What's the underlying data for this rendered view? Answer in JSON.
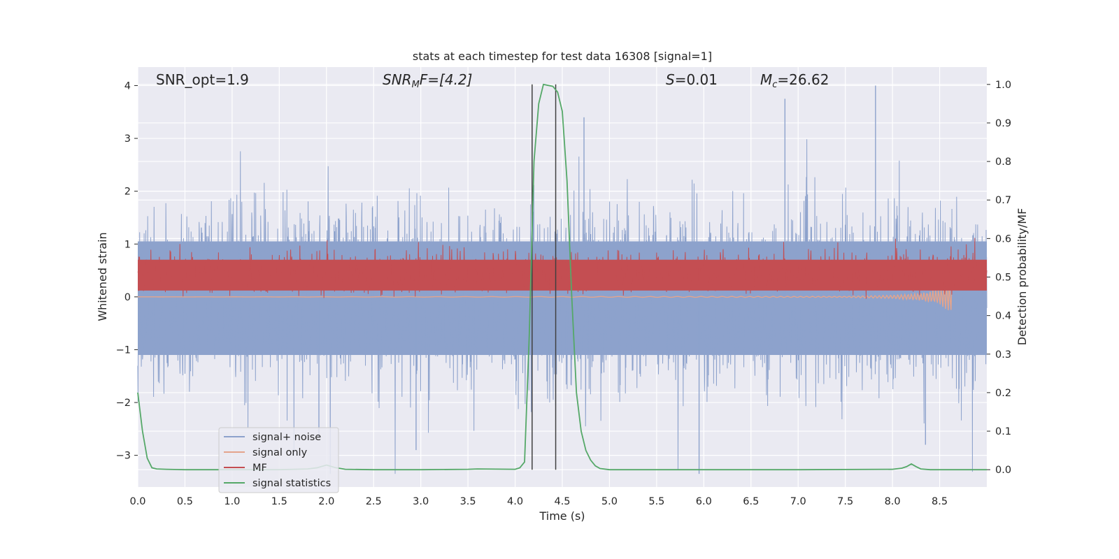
{
  "chart_data": {
    "type": "line",
    "title": "stats at each timestep for test data 16308 [signal=1]",
    "xlabel": "Time (s)",
    "ylabel": "Whitened strain",
    "ylabel_right": "Detection probability/MF",
    "xlim": [
      0.0,
      9.0
    ],
    "ylim": [
      -3.6,
      4.35
    ],
    "ylim_right": [
      -0.045,
      1.045
    ],
    "xticks": [
      "0.0",
      "0.5",
      "1.0",
      "1.5",
      "2.0",
      "2.5",
      "3.0",
      "3.5",
      "4.0",
      "4.5",
      "5.0",
      "5.5",
      "6.0",
      "6.5",
      "7.0",
      "7.5",
      "8.0",
      "8.5"
    ],
    "yticks": [
      "4",
      "3",
      "2",
      "1",
      "0",
      "−1",
      "−2",
      "−3"
    ],
    "yticks_right": [
      "1.0",
      "0.9",
      "0.8",
      "0.7",
      "0.6",
      "0.5",
      "0.4",
      "0.3",
      "0.2",
      "0.1",
      "0.0"
    ],
    "grid": true,
    "legend_position": "lower-left",
    "colors": {
      "signal_noise": "#8da2cc",
      "signal_only": "#e4a48c",
      "mf": "#c44e52",
      "signal_statistics": "#55a868",
      "vlines": "#404040",
      "background": "#eaeaf2"
    },
    "annotations": {
      "snr_opt": "SNR_opt=1.9",
      "snr_mf_main": "SNR",
      "snr_mf_sub": "M",
      "snr_mf_rest": "F=[4.2]",
      "s_var": "S",
      "s_rest": "=0.01",
      "mc_var": "M",
      "mc_sub": "c",
      "mc_rest": "=26.62"
    },
    "vertical_lines_x": [
      4.18,
      4.43
    ],
    "series": [
      {
        "name": "signal+ noise",
        "axis": "left",
        "description_values": {
          "typical_range": [
            -1.1,
            1.05
          ],
          "peak_max": 4.0,
          "peak_min": -3.35
        }
      },
      {
        "name": "signal only",
        "axis": "left",
        "values_x": [
          0.0,
          7.5,
          8.0,
          8.3,
          8.5,
          8.63
        ],
        "values_amplitude": [
          0.0,
          0.01,
          0.03,
          0.07,
          0.15,
          0.35
        ]
      },
      {
        "name": "MF",
        "axis": "right",
        "baseline": 0.5,
        "typical_range": [
          0.45,
          0.57
        ],
        "peak_max": 0.605
      },
      {
        "name": "signal statistics",
        "axis": "right",
        "x": [
          0.0,
          0.05,
          0.1,
          0.15,
          0.2,
          0.3,
          0.5,
          1.0,
          1.5,
          1.8,
          1.9,
          2.0,
          2.1,
          2.2,
          2.5,
          3.0,
          3.5,
          3.6,
          4.0,
          4.05,
          4.1,
          4.15,
          4.2,
          4.25,
          4.3,
          4.4,
          4.45,
          4.5,
          4.55,
          4.6,
          4.65,
          4.7,
          4.75,
          4.8,
          4.85,
          4.9,
          5.0,
          6.0,
          7.0,
          8.0,
          8.1,
          8.15,
          8.2,
          8.25,
          8.3,
          8.4,
          9.0
        ],
        "y": [
          0.2,
          0.1,
          0.03,
          0.005,
          0.002,
          0.001,
          0.0,
          0.0,
          0.0,
          0.002,
          0.005,
          0.012,
          0.005,
          0.001,
          0.0,
          0.0,
          0.001,
          0.002,
          0.001,
          0.005,
          0.02,
          0.35,
          0.8,
          0.95,
          1.0,
          0.995,
          0.98,
          0.93,
          0.75,
          0.45,
          0.2,
          0.1,
          0.05,
          0.025,
          0.01,
          0.003,
          0.0,
          0.0,
          0.0,
          0.001,
          0.004,
          0.008,
          0.015,
          0.008,
          0.002,
          0.0,
          0.0
        ]
      }
    ]
  }
}
